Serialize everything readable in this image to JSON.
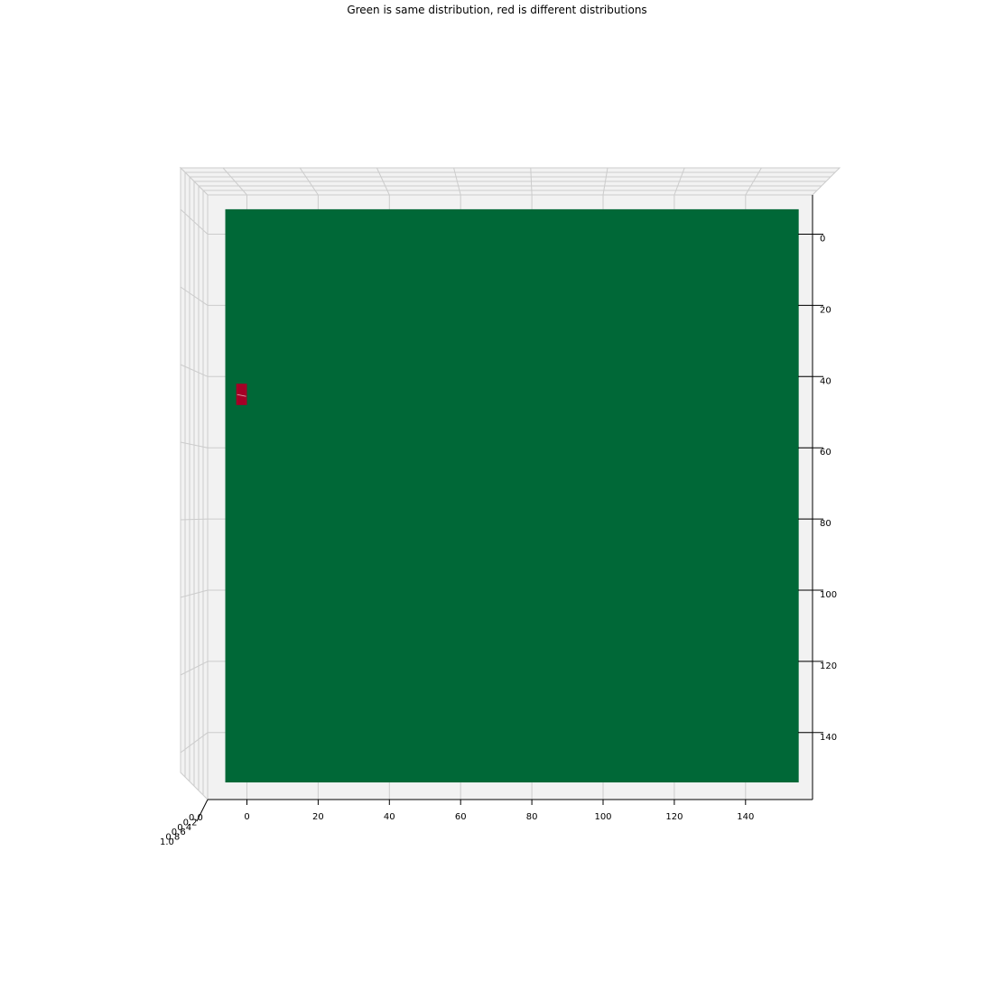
{
  "chart_data": {
    "type": "heatmap",
    "title": "Green is same distribution, red is different distributions",
    "x_range": [
      -6,
      160
    ],
    "y_range": [
      -6,
      160
    ],
    "x_ticks": [
      0,
      20,
      40,
      60,
      80,
      100,
      120,
      140
    ],
    "y_ticks": [
      0,
      20,
      40,
      60,
      80,
      100,
      120,
      140
    ],
    "z_ticks": [
      "0.0",
      "0.2",
      "0.4",
      "0.6",
      "0.8",
      "1.0"
    ],
    "grid": true,
    "surface": {
      "x": [
        -6,
        155
      ],
      "y": [
        -7,
        154
      ],
      "value": 0,
      "label": "same distribution"
    },
    "patches": [
      {
        "x": [
          -3,
          0
        ],
        "y": [
          42,
          48
        ],
        "value": 1,
        "label": "different distributions"
      }
    ],
    "colors": {
      "same": "#006837",
      "different": "#a50026",
      "pane": "#f2f2f2",
      "grid": "#cccccc"
    }
  }
}
